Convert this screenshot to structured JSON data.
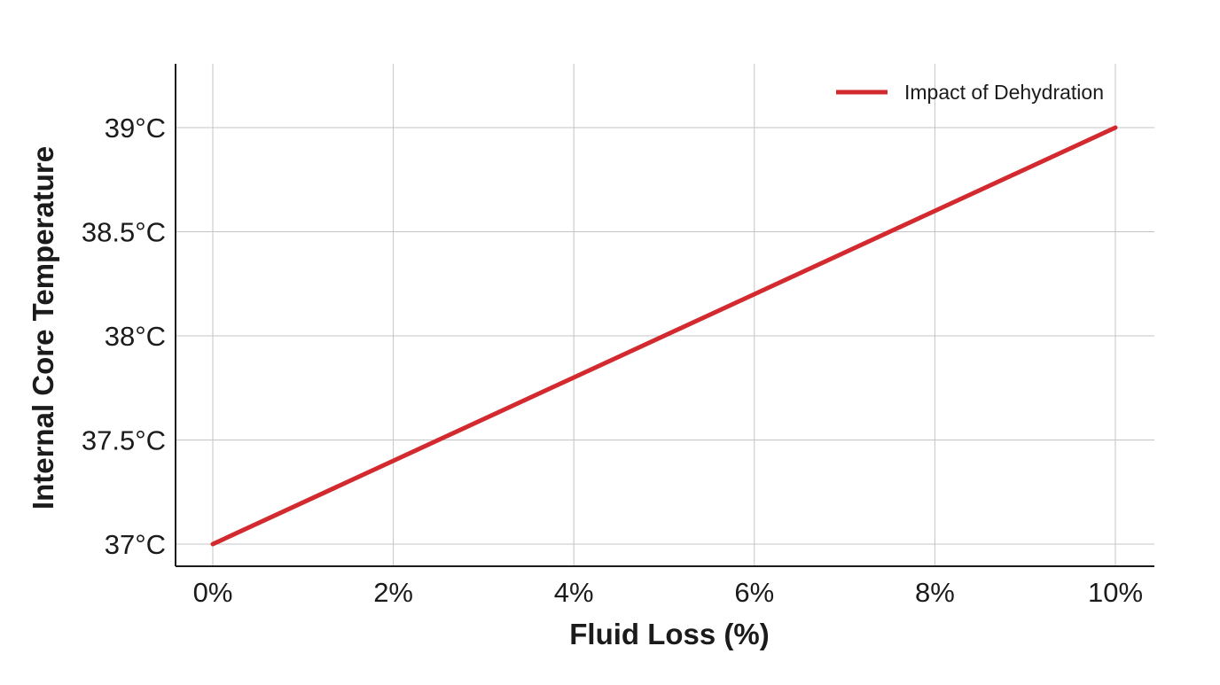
{
  "chart_data": {
    "type": "line",
    "title": "",
    "xlabel": "Fluid Loss (%)",
    "ylabel": "Internal Core Temperature",
    "x": [
      0,
      2,
      4,
      6,
      8,
      10
    ],
    "x_tick_labels": [
      "0%",
      "2%",
      "4%",
      "6%",
      "8%",
      "10%"
    ],
    "y_ticks": [
      37,
      37.5,
      38,
      38.5,
      39
    ],
    "y_tick_labels": [
      "37°C",
      "37.5°C",
      "38°C",
      "38.5°C",
      "39°C"
    ],
    "xlim": [
      -0.2,
      10.2
    ],
    "ylim": [
      36.9,
      39.3
    ],
    "grid": true,
    "legend_position": "top-right",
    "series": [
      {
        "name": "Impact of Dehydration",
        "color": "#d22a2f",
        "x": [
          0,
          2,
          4,
          6,
          8,
          10
        ],
        "values": [
          37.0,
          37.4,
          37.8,
          38.2,
          38.6,
          39.0
        ]
      }
    ]
  }
}
